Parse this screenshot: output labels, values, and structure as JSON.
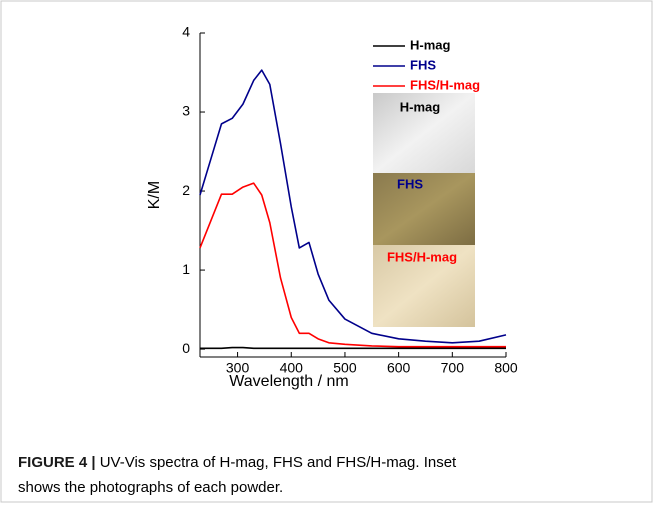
{
  "chart_data": {
    "type": "line",
    "xlabel": "Wavelength / nm",
    "ylabel": "K/M",
    "x": [
      230,
      250,
      270,
      290,
      310,
      330,
      345,
      360,
      380,
      400,
      415,
      433,
      450,
      470,
      500,
      550,
      600,
      650,
      700,
      750,
      800
    ],
    "series": [
      {
        "name": "H-mag",
        "color": "#000000",
        "values": [
          0.01,
          0.01,
          0.01,
          0.02,
          0.02,
          0.01,
          0.01,
          0.01,
          0.01,
          0.01,
          0.01,
          0.01,
          0.01,
          0.01,
          0.01,
          0.01,
          0.01,
          0.01,
          0.01,
          0.01,
          0.01
        ]
      },
      {
        "name": "FHS",
        "color": "#00008b",
        "values": [
          1.95,
          2.4,
          2.85,
          2.92,
          3.1,
          3.4,
          3.53,
          3.35,
          2.6,
          1.8,
          1.28,
          1.35,
          0.95,
          0.62,
          0.38,
          0.2,
          0.13,
          0.1,
          0.08,
          0.1,
          0.18
        ]
      },
      {
        "name": "FHS/H-mag",
        "color": "#ff0000",
        "values": [
          1.28,
          1.62,
          1.96,
          1.96,
          2.05,
          2.1,
          1.95,
          1.6,
          0.9,
          0.4,
          0.2,
          0.2,
          0.13,
          0.08,
          0.06,
          0.04,
          0.03,
          0.03,
          0.03,
          0.03,
          0.03
        ]
      }
    ],
    "xlim": [
      230,
      800
    ],
    "xticks": [
      300,
      400,
      500,
      600,
      700,
      800
    ],
    "ylim": [
      -0.1,
      4
    ],
    "yticks": [
      0,
      1,
      2,
      3,
      4
    ],
    "inset_labels": [
      "H-mag",
      "FHS",
      "FHS/H-mag"
    ]
  },
  "caption": {
    "label": "FIGURE 4 |",
    "text": "UV-Vis spectra of H-mag, FHS and FHS/H-mag. Inset",
    "text2": "shows the photographs of each powder."
  }
}
